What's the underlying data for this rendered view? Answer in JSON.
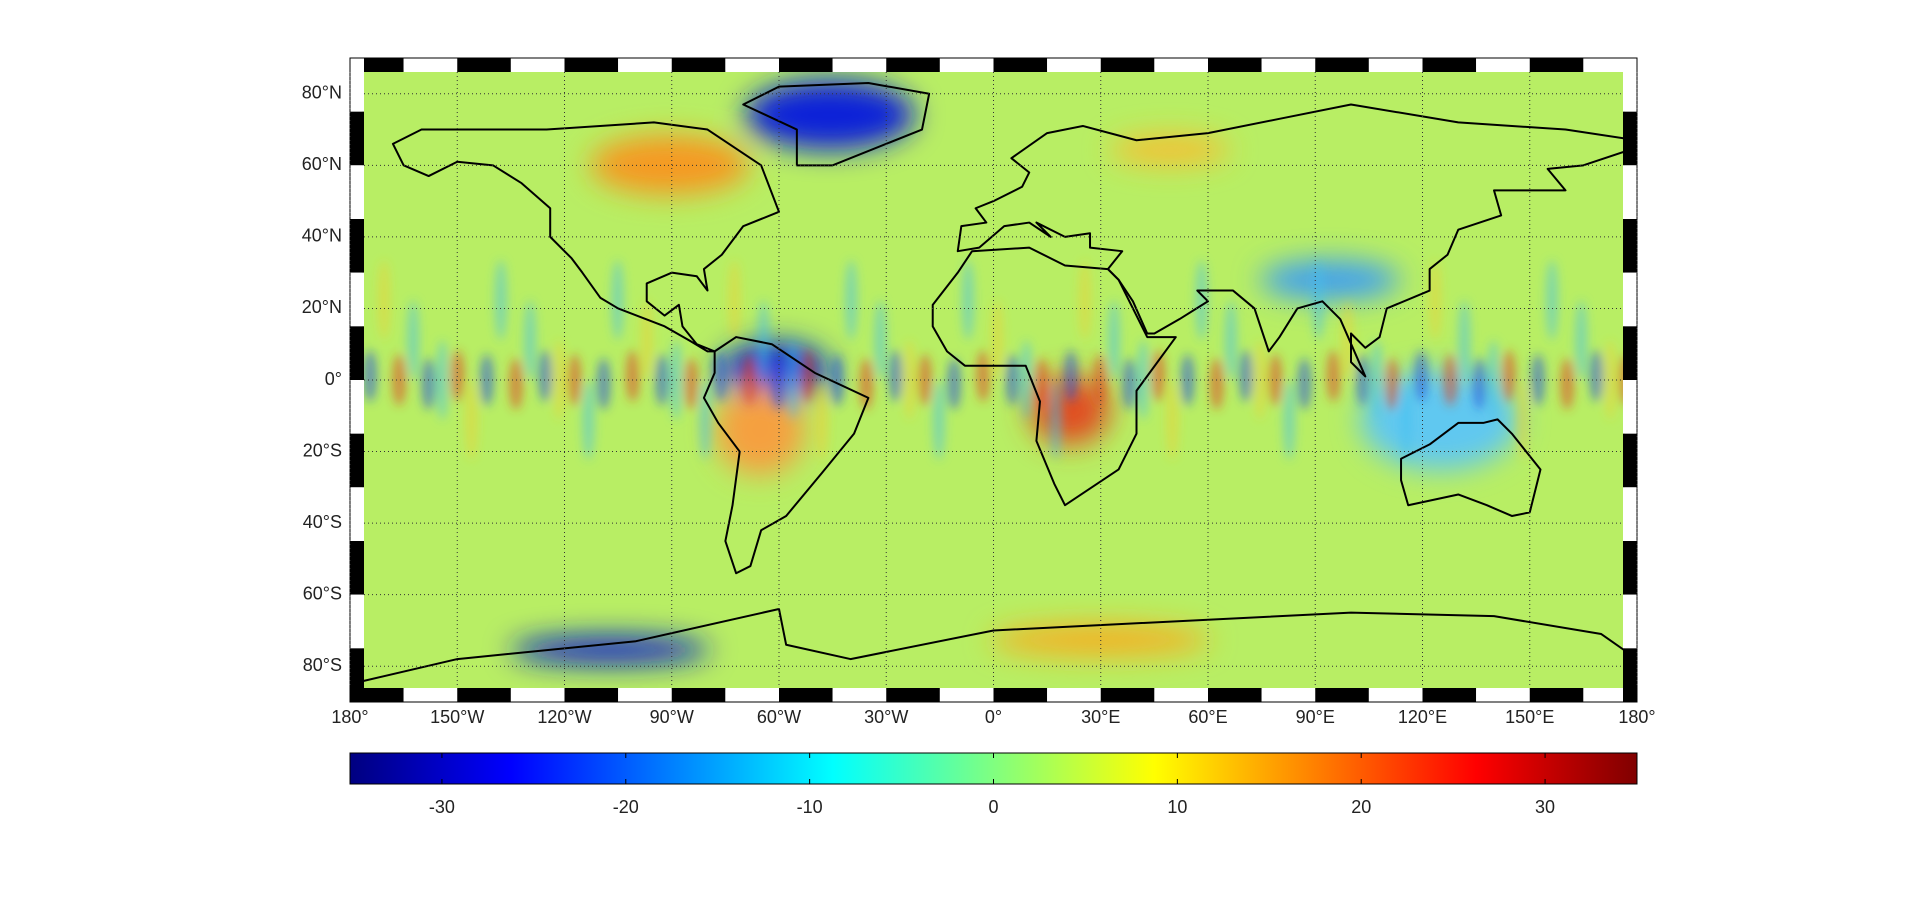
{
  "chart_data": {
    "type": "map",
    "xlim": [
      -180,
      180
    ],
    "ylim": [
      -90,
      90
    ],
    "xticks": [
      {
        "value": -180,
        "label": "180°"
      },
      {
        "value": -150,
        "label": "150°W"
      },
      {
        "value": -120,
        "label": "120°W"
      },
      {
        "value": -90,
        "label": "90°W"
      },
      {
        "value": -60,
        "label": "60°W"
      },
      {
        "value": -30,
        "label": "30°W"
      },
      {
        "value": 0,
        "label": "0°"
      },
      {
        "value": 30,
        "label": "30°E"
      },
      {
        "value": 60,
        "label": "60°E"
      },
      {
        "value": 90,
        "label": "90°E"
      },
      {
        "value": 120,
        "label": "120°E"
      },
      {
        "value": 150,
        "label": "150°E"
      },
      {
        "value": 180,
        "label": "180°"
      }
    ],
    "yticks": [
      {
        "value": 80,
        "label": "80°N"
      },
      {
        "value": 60,
        "label": "60°N"
      },
      {
        "value": 40,
        "label": "40°N"
      },
      {
        "value": 20,
        "label": "20°N"
      },
      {
        "value": 0,
        "label": "0°"
      },
      {
        "value": -20,
        "label": "20°S"
      },
      {
        "value": -40,
        "label": "40°S"
      },
      {
        "value": -60,
        "label": "60°S"
      },
      {
        "value": -80,
        "label": "80°S"
      }
    ],
    "grid": true,
    "colorbar": {
      "colormap": "jet",
      "lim": [
        -35,
        35
      ],
      "ticks": [
        -30,
        -20,
        -10,
        0,
        10,
        20,
        30
      ]
    }
  }
}
